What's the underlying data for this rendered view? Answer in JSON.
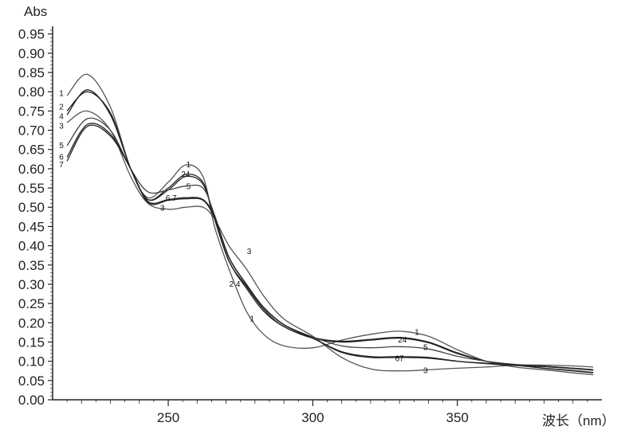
{
  "chart_data": {
    "type": "line",
    "ylabel": "Abs",
    "xlabel": "波长（nm）",
    "xlim": [
      210,
      400
    ],
    "ylim": [
      0,
      0.97
    ],
    "xticks": [
      250,
      300,
      350
    ],
    "yticks": [
      0.0,
      0.05,
      0.1,
      0.15,
      0.2,
      0.25,
      0.3,
      0.35,
      0.4,
      0.45,
      0.5,
      0.55,
      0.6,
      0.65,
      0.7,
      0.75,
      0.8,
      0.85,
      0.9,
      0.95
    ],
    "ytick_labels": [
      "0.00",
      "0.05",
      "0.10",
      "0.15",
      "0.20",
      "0.25",
      "0.30",
      "0.35",
      "0.40",
      "0.45",
      "0.50",
      "0.55",
      "0.60",
      "0.65",
      "0.70",
      "0.75",
      "0.80",
      "0.85",
      "0.90",
      "0.95"
    ],
    "xtick_labels": [
      "250",
      "300",
      "350"
    ],
    "grid": false,
    "series": [
      {
        "name": "1",
        "color": "#555555",
        "x": [
          215,
          222,
          230,
          237,
          243,
          250,
          256,
          262,
          266,
          271,
          277,
          283,
          290,
          300,
          310,
          320,
          330,
          340,
          350,
          360,
          370,
          380,
          390,
          397
        ],
        "y": [
          0.79,
          0.845,
          0.76,
          0.6,
          0.525,
          0.565,
          0.61,
          0.58,
          0.45,
          0.34,
          0.23,
          0.17,
          0.14,
          0.135,
          0.155,
          0.17,
          0.178,
          0.165,
          0.13,
          0.1,
          0.085,
          0.078,
          0.07,
          0.065
        ]
      },
      {
        "name": "2",
        "color": "#222222",
        "x": [
          215,
          222,
          230,
          237,
          243,
          250,
          256,
          262,
          266,
          271,
          277,
          283,
          290,
          300,
          310,
          320,
          330,
          340,
          350,
          360,
          370,
          380,
          390,
          397
        ],
        "y": [
          0.75,
          0.8,
          0.745,
          0.6,
          0.52,
          0.55,
          0.585,
          0.565,
          0.47,
          0.36,
          0.29,
          0.23,
          0.19,
          0.16,
          0.15,
          0.155,
          0.16,
          0.148,
          0.12,
          0.1,
          0.09,
          0.082,
          0.075,
          0.07
        ]
      },
      {
        "name": "4",
        "color": "#222222",
        "x": [
          215,
          222,
          230,
          237,
          243,
          250,
          256,
          262,
          266,
          271,
          277,
          283,
          290,
          300,
          310,
          320,
          330,
          340,
          350,
          360,
          370,
          380,
          390,
          397
        ],
        "y": [
          0.74,
          0.805,
          0.74,
          0.6,
          0.52,
          0.545,
          0.58,
          0.56,
          0.47,
          0.36,
          0.295,
          0.235,
          0.19,
          0.162,
          0.152,
          0.157,
          0.162,
          0.15,
          0.122,
          0.1,
          0.09,
          0.082,
          0.076,
          0.071
        ]
      },
      {
        "name": "3",
        "color": "#555555",
        "x": [
          215,
          222,
          230,
          237,
          243,
          250,
          256,
          262,
          266,
          271,
          277,
          283,
          290,
          300,
          310,
          320,
          330,
          340,
          350,
          360,
          370,
          380,
          390,
          397
        ],
        "y": [
          0.72,
          0.75,
          0.7,
          0.58,
          0.51,
          0.495,
          0.5,
          0.5,
          0.47,
          0.4,
          0.34,
          0.27,
          0.21,
          0.165,
          0.11,
          0.08,
          0.075,
          0.078,
          0.082,
          0.085,
          0.09,
          0.09,
          0.088,
          0.085
        ]
      },
      {
        "name": "5",
        "color": "#444444",
        "x": [
          215,
          222,
          230,
          237,
          243,
          250,
          256,
          262,
          266,
          271,
          277,
          283,
          290,
          300,
          310,
          320,
          330,
          340,
          350,
          360,
          370,
          380,
          390,
          397
        ],
        "y": [
          0.66,
          0.73,
          0.7,
          0.6,
          0.54,
          0.545,
          0.555,
          0.55,
          0.48,
          0.37,
          0.3,
          0.24,
          0.195,
          0.163,
          0.14,
          0.135,
          0.138,
          0.132,
          0.113,
          0.1,
          0.092,
          0.087,
          0.082,
          0.078
        ]
      },
      {
        "name": "6",
        "color": "#222222",
        "x": [
          215,
          222,
          230,
          237,
          243,
          250,
          256,
          262,
          266,
          271,
          277,
          283,
          290,
          300,
          310,
          320,
          330,
          340,
          350,
          360,
          370,
          380,
          390,
          397
        ],
        "y": [
          0.63,
          0.715,
          0.69,
          0.6,
          0.515,
          0.52,
          0.525,
          0.52,
          0.475,
          0.37,
          0.3,
          0.24,
          0.195,
          0.16,
          0.125,
          0.112,
          0.112,
          0.11,
          0.1,
          0.095,
          0.09,
          0.087,
          0.082,
          0.078
        ]
      },
      {
        "name": "7",
        "color": "#222222",
        "x": [
          215,
          222,
          230,
          237,
          243,
          250,
          256,
          262,
          266,
          271,
          277,
          283,
          290,
          300,
          310,
          320,
          330,
          340,
          350,
          360,
          370,
          380,
          390,
          397
        ],
        "y": [
          0.62,
          0.71,
          0.685,
          0.6,
          0.512,
          0.518,
          0.522,
          0.518,
          0.472,
          0.37,
          0.3,
          0.24,
          0.195,
          0.16,
          0.123,
          0.11,
          0.11,
          0.108,
          0.1,
          0.094,
          0.089,
          0.086,
          0.081,
          0.077
        ]
      }
    ],
    "left_labels": [
      {
        "text": "1",
        "y": 0.795
      },
      {
        "text": "2",
        "y": 0.76
      },
      {
        "text": "4",
        "y": 0.735
      },
      {
        "text": "3",
        "y": 0.71
      },
      {
        "text": "5",
        "y": 0.66
      },
      {
        "text": "6",
        "y": 0.63
      },
      {
        "text": "7",
        "y": 0.61
      }
    ],
    "annotations": [
      {
        "text": "1",
        "x": 257,
        "y": 0.61
      },
      {
        "text": "24",
        "x": 256,
        "y": 0.585
      },
      {
        "text": "5",
        "x": 257,
        "y": 0.553
      },
      {
        "text": "6 7",
        "x": 251,
        "y": 0.523
      },
      {
        "text": "3",
        "x": 248,
        "y": 0.497
      },
      {
        "text": "3",
        "x": 278,
        "y": 0.385
      },
      {
        "text": "2 4",
        "x": 273,
        "y": 0.3
      },
      {
        "text": "1",
        "x": 279,
        "y": 0.21
      },
      {
        "text": "1",
        "x": 336,
        "y": 0.175
      },
      {
        "text": "24",
        "x": 331,
        "y": 0.155
      },
      {
        "text": "5",
        "x": 339,
        "y": 0.135
      },
      {
        "text": "67",
        "x": 330,
        "y": 0.107
      },
      {
        "text": "3",
        "x": 339,
        "y": 0.075
      }
    ]
  }
}
